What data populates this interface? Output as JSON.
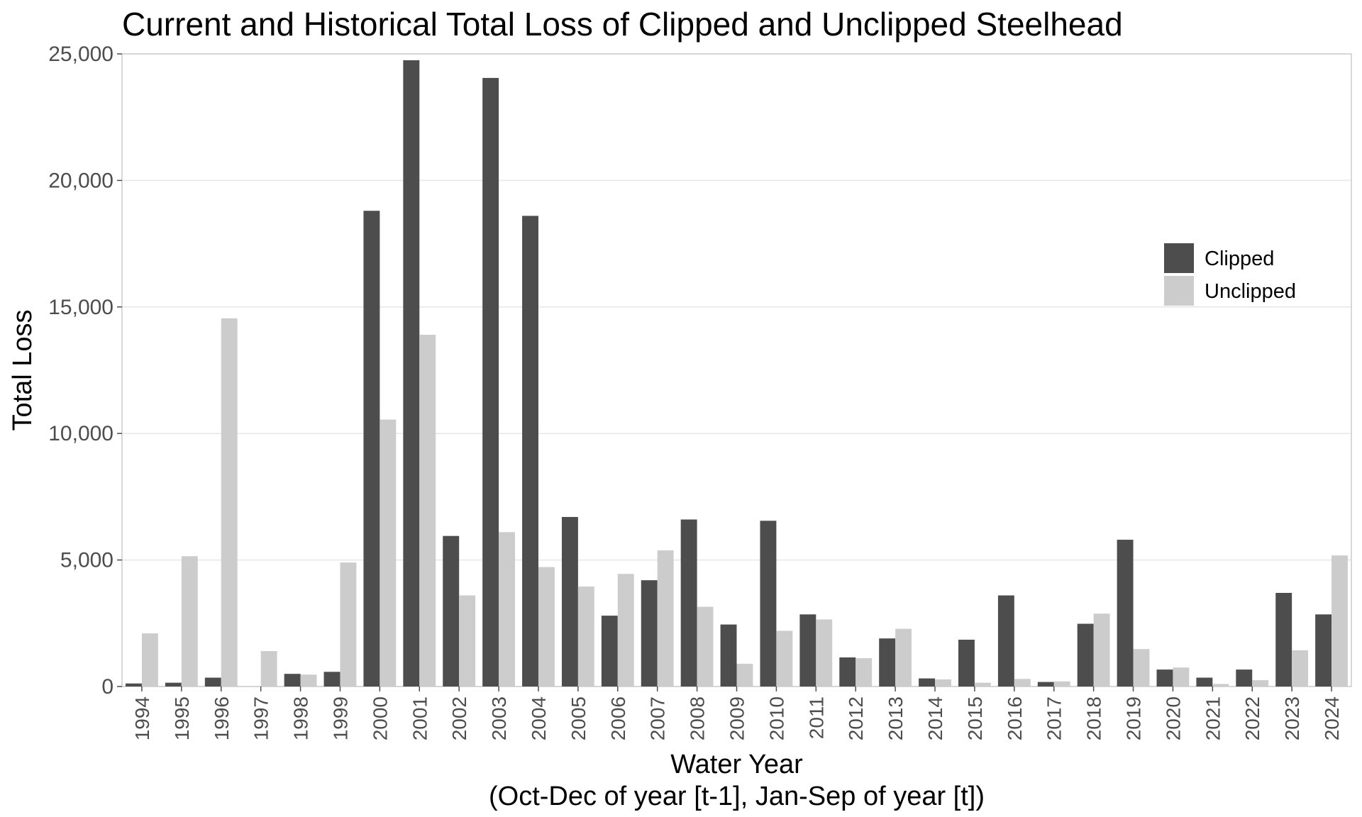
{
  "chart_data": {
    "type": "bar",
    "title": "Current and Historical Total Loss of Clipped and Unclipped Steelhead",
    "xlabel": "Water Year",
    "xlabel_sub": "(Oct-Dec of year [t-1], Jan-Sep of year [t])",
    "ylabel": "Total Loss",
    "ylim": [
      0,
      25000
    ],
    "yticks": [
      0,
      5000,
      10000,
      15000,
      20000,
      25000
    ],
    "ytick_labels": [
      "0",
      "5,000",
      "10,000",
      "15,000",
      "20,000",
      "25,000"
    ],
    "grid": true,
    "legend_position": "right",
    "categories": [
      "1994",
      "1995",
      "1996",
      "1997",
      "1998",
      "1999",
      "2000",
      "2001",
      "2002",
      "2003",
      "2004",
      "2005",
      "2006",
      "2007",
      "2008",
      "2009",
      "2010",
      "2011",
      "2012",
      "2013",
      "2014",
      "2015",
      "2016",
      "2017",
      "2018",
      "2019",
      "2020",
      "2021",
      "2022",
      "2023",
      "2024"
    ],
    "series": [
      {
        "name": "Clipped",
        "color": "#4d4d4d",
        "values": [
          120,
          150,
          350,
          0,
          500,
          580,
          18800,
          24750,
          5950,
          24050,
          18600,
          6700,
          2800,
          4200,
          6600,
          2450,
          6550,
          2850,
          1150,
          1900,
          320,
          1850,
          3600,
          180,
          2480,
          5800,
          670,
          350,
          670,
          3700,
          2850
        ]
      },
      {
        "name": "Unclipped",
        "color": "#cccccc",
        "values": [
          2100,
          5150,
          14550,
          1400,
          470,
          4900,
          10550,
          13900,
          3600,
          6100,
          4720,
          3950,
          4450,
          5380,
          3150,
          900,
          2200,
          2650,
          1120,
          2280,
          280,
          150,
          300,
          200,
          2880,
          1480,
          750,
          100,
          250,
          1430,
          5180
        ]
      }
    ]
  }
}
